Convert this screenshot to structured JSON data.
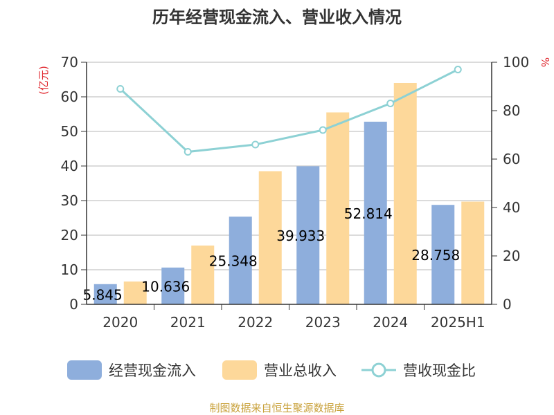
{
  "chart_data": {
    "type": "bar",
    "title": "历年经营现金流入、营业收入情况",
    "categories": [
      "2020",
      "2021",
      "2022",
      "2023",
      "2024",
      "2025H1"
    ],
    "series": [
      {
        "name": "经营现金流入",
        "type": "bar",
        "axis": "left",
        "values": [
          5.845,
          10.636,
          25.348,
          39.933,
          52.814,
          28.758
        ],
        "labels": [
          "5.845",
          "10.636",
          "25.348",
          "39.933",
          "52.814",
          "28.758"
        ]
      },
      {
        "name": "营业总收入",
        "type": "bar",
        "axis": "left",
        "values": [
          6.6,
          17.0,
          38.5,
          55.5,
          64.0,
          29.7
        ]
      },
      {
        "name": "营收现金比",
        "type": "line",
        "axis": "right",
        "values": [
          89,
          63,
          66,
          72,
          83,
          97
        ]
      }
    ],
    "yleft": {
      "label": "(亿元)",
      "lim": [
        0,
        70
      ],
      "ticks": [
        "0",
        "10",
        "20",
        "30",
        "40",
        "50",
        "60",
        "70"
      ]
    },
    "yright": {
      "label": "%",
      "lim": [
        0,
        100
      ],
      "ticks": [
        "0",
        "20",
        "40",
        "60",
        "80",
        "100"
      ]
    },
    "grid": true,
    "legend_position": "bottom",
    "source": "制图数据来自恒生聚源数据库",
    "colors": {
      "cashflow": "#8eaedc",
      "revenue": "#fdd89a",
      "ratio": "#8dd1d4"
    }
  }
}
